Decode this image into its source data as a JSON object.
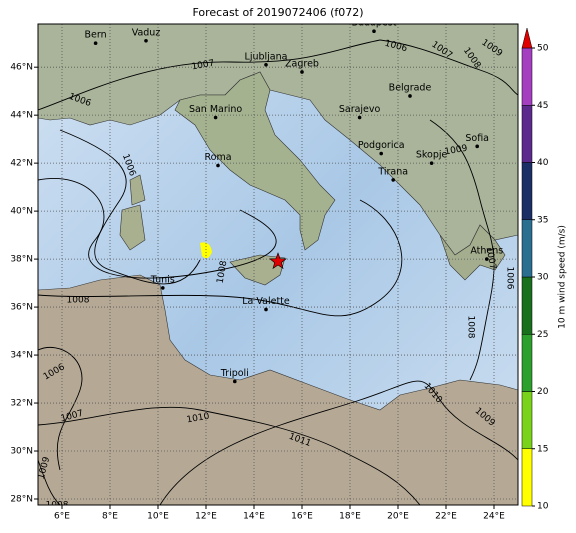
{
  "chart_data": {
    "type": "map",
    "title": "Forecast of 2019072406 (f072)",
    "xlim": [
      5,
      25
    ],
    "ylim": [
      27.75,
      47.8
    ],
    "xticks": [
      {
        "value": 6,
        "label": "6°E"
      },
      {
        "value": 8,
        "label": "8°E"
      },
      {
        "value": 10,
        "label": "10°E"
      },
      {
        "value": 12,
        "label": "12°E"
      },
      {
        "value": 14,
        "label": "14°E"
      },
      {
        "value": 16,
        "label": "16°E"
      },
      {
        "value": 18,
        "label": "18°E"
      },
      {
        "value": 20,
        "label": "20°E"
      },
      {
        "value": 22,
        "label": "22°E"
      },
      {
        "value": 24,
        "label": "24°E"
      }
    ],
    "yticks": [
      {
        "value": 28,
        "label": "28°N"
      },
      {
        "value": 30,
        "label": "30°N"
      },
      {
        "value": 32,
        "label": "32°N"
      },
      {
        "value": 34,
        "label": "34°N"
      },
      {
        "value": 36,
        "label": "36°N"
      },
      {
        "value": 38,
        "label": "38°N"
      },
      {
        "value": 40,
        "label": "40°N"
      },
      {
        "value": 42,
        "label": "42°N"
      },
      {
        "value": 44,
        "label": "44°N"
      },
      {
        "value": 46,
        "label": "46°N"
      }
    ],
    "grid": true,
    "cities": [
      {
        "name": "Bern",
        "lon": 7.4,
        "lat": 47.0
      },
      {
        "name": "Vaduz",
        "lon": 9.5,
        "lat": 47.1
      },
      {
        "name": "Budapest",
        "lon": 19.0,
        "lat": 47.5
      },
      {
        "name": "Ljubljana",
        "lon": 14.5,
        "lat": 46.1
      },
      {
        "name": "Zagreb",
        "lon": 16.0,
        "lat": 45.8
      },
      {
        "name": "San Marino",
        "lon": 12.4,
        "lat": 43.9
      },
      {
        "name": "Belgrade",
        "lon": 20.5,
        "lat": 44.8
      },
      {
        "name": "Sarajevo",
        "lon": 18.4,
        "lat": 43.9
      },
      {
        "name": "Roma",
        "lon": 12.5,
        "lat": 41.9
      },
      {
        "name": "Podgorica",
        "lon": 19.3,
        "lat": 42.4
      },
      {
        "name": "Skopje",
        "lon": 21.4,
        "lat": 42.0
      },
      {
        "name": "Sofia",
        "lon": 23.3,
        "lat": 42.7
      },
      {
        "name": "Tirana",
        "lon": 19.8,
        "lat": 41.3
      },
      {
        "name": "Athens",
        "lon": 23.7,
        "lat": 38.0
      },
      {
        "name": "Tunis",
        "lon": 10.2,
        "lat": 36.8
      },
      {
        "name": "La Valette",
        "lon": 14.5,
        "lat": 35.9
      },
      {
        "name": "Tripoli",
        "lon": 13.2,
        "lat": 32.9
      }
    ],
    "marker": {
      "lon": 15.0,
      "lat": 37.9,
      "color": "#e00000"
    },
    "isobar_labels": [
      "1007",
      "1006",
      "1006",
      "1006",
      "1007",
      "1009",
      "1008",
      "1009",
      "1007",
      "1006",
      "1008",
      "1008",
      "1008",
      "1006",
      "1007",
      "1010",
      "1011",
      "1010",
      "1009",
      "1009",
      "1008"
    ],
    "colorbar": {
      "label": "10 m wind speed (m/s)",
      "levels": [
        10,
        15,
        20,
        25,
        30,
        35,
        40,
        45,
        50
      ],
      "colors": [
        "#ffff00",
        "#7ad31a",
        "#2ca02c",
        "#18701c",
        "#2a6f8f",
        "#1a2f66",
        "#5b2a8c",
        "#a43fc0"
      ],
      "extend_color": "#e00000"
    }
  }
}
